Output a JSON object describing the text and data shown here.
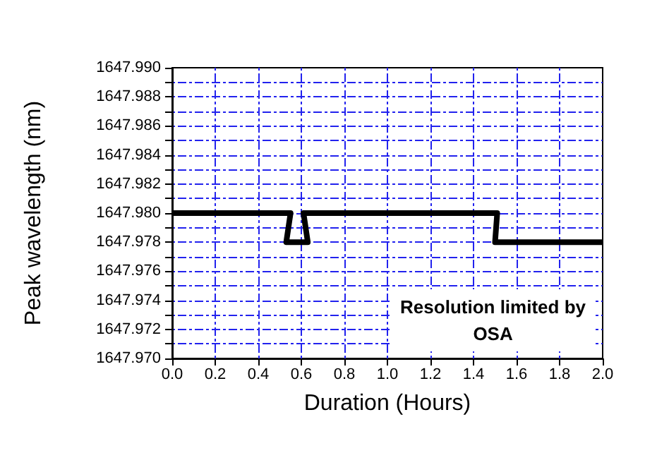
{
  "chart_data": {
    "type": "line",
    "xlabel": "Duration (Hours)",
    "ylabel": "Peak wavelength (nm)",
    "x": [
      0,
      0.55,
      0.53,
      0.63,
      0.61,
      1.51,
      1.5,
      2.0
    ],
    "series": [
      {
        "color": "#000000",
        "values": [
          1647.98,
          1647.98,
          1647.978,
          1647.978,
          1647.98,
          1647.98,
          1647.978,
          1647.978
        ]
      }
    ],
    "xlim": [
      0,
      2
    ],
    "xticks": [
      {
        "value": 0,
        "label": "0.0"
      },
      {
        "value": 0.2,
        "label": "0.2"
      },
      {
        "value": 0.4,
        "label": "0.4"
      },
      {
        "value": 0.6,
        "label": "0.6"
      },
      {
        "value": 0.8,
        "label": "0.8"
      },
      {
        "value": 1,
        "label": "1.0"
      },
      {
        "value": 1.2,
        "label": "1.2"
      },
      {
        "value": 1.4,
        "label": "1.4"
      },
      {
        "value": 1.6,
        "label": "1.6"
      },
      {
        "value": 1.8,
        "label": "1.8"
      },
      {
        "value": 2,
        "label": "2.0"
      }
    ],
    "ylim": [
      1647.97,
      1647.99
    ],
    "yticks": [
      {
        "value": 1647.97,
        "label": "1647.970"
      },
      {
        "value": 1647.971,
        "label": null
      },
      {
        "value": 1647.972,
        "label": "1647.972"
      },
      {
        "value": 1647.973,
        "label": null
      },
      {
        "value": 1647.974,
        "label": "1647.974"
      },
      {
        "value": 1647.975,
        "label": null
      },
      {
        "value": 1647.976,
        "label": "1647.976"
      },
      {
        "value": 1647.977,
        "label": null
      },
      {
        "value": 1647.978,
        "label": "1647.978"
      },
      {
        "value": 1647.979,
        "label": null
      },
      {
        "value": 1647.98,
        "label": "1647.980"
      },
      {
        "value": 1647.981,
        "label": null
      },
      {
        "value": 1647.982,
        "label": "1647.982"
      },
      {
        "value": 1647.983,
        "label": null
      },
      {
        "value": 1647.984,
        "label": "1647.984"
      },
      {
        "value": 1647.985,
        "label": null
      },
      {
        "value": 1647.986,
        "label": "1647.986"
      },
      {
        "value": 1647.987,
        "label": null
      },
      {
        "value": 1647.988,
        "label": "1647.988"
      },
      {
        "value": 1647.989,
        "label": null
      },
      {
        "value": 1647.99,
        "label": "1647.990"
      }
    ],
    "grid": true,
    "marker": "none",
    "line_style": "solid",
    "annotations": [
      "Resolution limited by\nOSA"
    ]
  }
}
